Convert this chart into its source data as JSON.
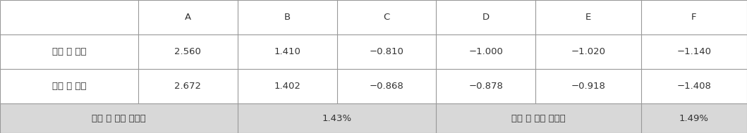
{
  "col_headers": [
    "",
    "A",
    "B",
    "C",
    "D",
    "E",
    "F"
  ],
  "row1_label": "시험 전 편차",
  "row1_values": [
    "2.560",
    "1.410",
    "−0.810",
    "−1.000",
    "−1.020",
    "−1.140"
  ],
  "row2_label": "시험 후 편차",
  "row2_values": [
    "2.672",
    "1.402",
    "−0.868",
    "−0.878",
    "−0.918",
    "−1.408"
  ],
  "footer_left_label": "시험 전 저항 균일도",
  "footer_left_value": "1.43%",
  "footer_right_label": "시험 후 저항 균일도",
  "footer_right_value": "1.49%",
  "bg_color": "#ffffff",
  "footer_bg_color": "#d8d8d8",
  "border_color": "#999999",
  "text_color": "#333333",
  "font_size": 9.5,
  "col_bounds": [
    0.0,
    0.185,
    0.318,
    0.451,
    0.584,
    0.717,
    0.858,
    1.0
  ],
  "row_bounds": [
    1.0,
    0.74,
    0.48,
    0.22,
    0.0
  ]
}
